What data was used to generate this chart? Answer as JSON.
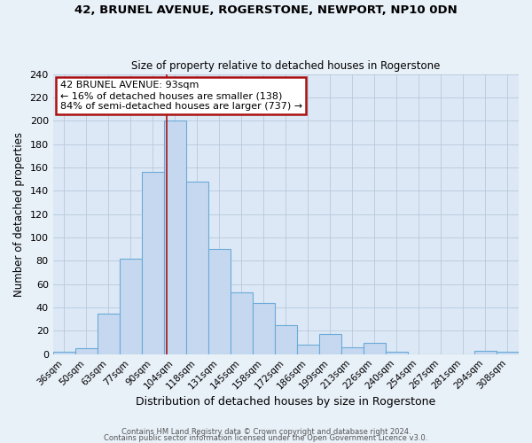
{
  "title": "42, BRUNEL AVENUE, ROGERSTONE, NEWPORT, NP10 0DN",
  "subtitle": "Size of property relative to detached houses in Rogerstone",
  "xlabel": "Distribution of detached houses by size in Rogerstone",
  "ylabel": "Number of detached properties",
  "bin_labels": [
    "36sqm",
    "50sqm",
    "63sqm",
    "77sqm",
    "90sqm",
    "104sqm",
    "118sqm",
    "131sqm",
    "145sqm",
    "158sqm",
    "172sqm",
    "186sqm",
    "199sqm",
    "213sqm",
    "226sqm",
    "240sqm",
    "254sqm",
    "267sqm",
    "281sqm",
    "294sqm",
    "308sqm"
  ],
  "bar_heights": [
    2,
    5,
    35,
    82,
    156,
    200,
    148,
    90,
    53,
    44,
    25,
    8,
    17,
    6,
    10,
    2,
    0,
    0,
    0,
    3,
    2
  ],
  "bar_color": "#c5d8f0",
  "bar_edge_color": "#6baad8",
  "bg_color": "#dce8f5",
  "fig_bg_color": "#e8f0f8",
  "grid_color": "#b8c8dc",
  "vline_x": 4.65,
  "vline_color": "#aa1111",
  "annotation_title": "42 BRUNEL AVENUE: 93sqm",
  "annotation_line1": "← 16% of detached houses are smaller (138)",
  "annotation_line2": "84% of semi-detached houses are larger (737) →",
  "annotation_box_color": "#ffffff",
  "annotation_border_color": "#aa1111",
  "ylim": [
    0,
    240
  ],
  "yticks": [
    0,
    20,
    40,
    60,
    80,
    100,
    120,
    140,
    160,
    180,
    200,
    220,
    240
  ],
  "footer1": "Contains HM Land Registry data © Crown copyright and database right 2024.",
  "footer2": "Contains public sector information licensed under the Open Government Licence v3.0."
}
